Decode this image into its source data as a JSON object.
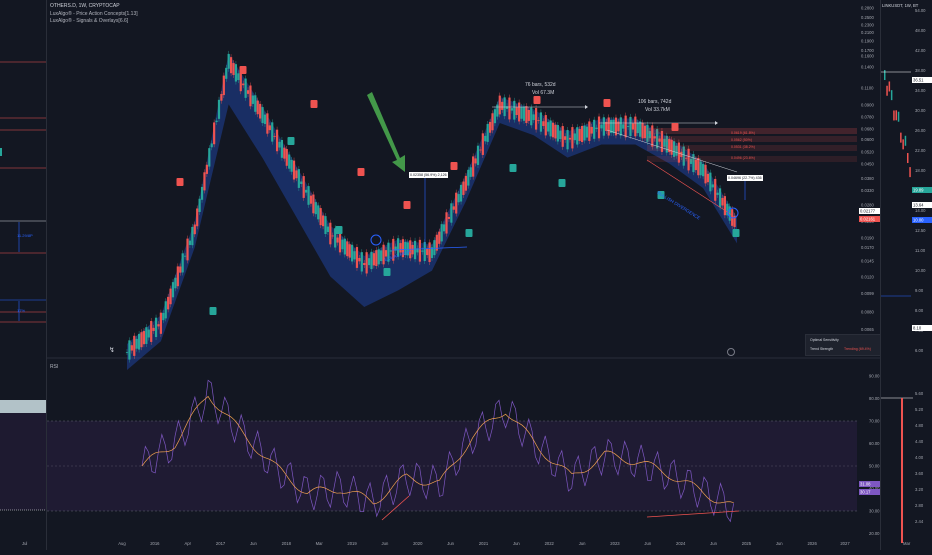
{
  "colors": {
    "bg": "#131722",
    "up": "#26a69a",
    "down": "#ef5350",
    "cloud": "#2962ff",
    "rsi_line": "#7e57c2",
    "rsi_ma": "#f0a050",
    "band": "#ef5350",
    "arrow_green": "#4caf50"
  },
  "left_panel": {
    "labels": [
      "11.29/8P",
      "17%"
    ],
    "time_ticks": [
      "Jul"
    ]
  },
  "main_panel": {
    "header": {
      "title": "OTHERS.D, 1W, CRYPTOCAP",
      "indicator1": "LuxAlgo® - Price Action Concepts[1.13]",
      "indicator2": "LuxAlgo® - Signals & Overlays[6.6]",
      "rsi_label": "RSI"
    },
    "time_ticks": [
      "Aug",
      "2016",
      "Apr",
      "2017",
      "Jun",
      "2018",
      "Mar",
      "2019",
      "Jun",
      "2020",
      "Jun",
      "2021",
      "Jun",
      "2022",
      "Jun",
      "2023",
      "Jun",
      "2024",
      "Jun",
      "2025",
      "Jun",
      "2026",
      "2027"
    ],
    "price_ticks": [
      "0.2800",
      "0.2500",
      "0.2300",
      "0.2100",
      "0.1900",
      "0.1700",
      "0.1600",
      "0.1400",
      "0.1100",
      "0.0900",
      "0.0780",
      "0.0680",
      "0.0600",
      "0.0520",
      "0.0450",
      "0.0380",
      "0.0330",
      "0.0280",
      "0.0230",
      "0.0190",
      "0.0170",
      "0.0145",
      "0.0120",
      "0.0099",
      "0.0080",
      "0.0065",
      "0.0050"
    ],
    "price_tags": [
      "0.02177",
      "0.02161"
    ],
    "rsi_ticks": [
      "90.00",
      "80.00",
      "70.00",
      "60.00",
      "50.00",
      "40.00",
      "30.00",
      "20.00"
    ],
    "rsi_tags": [
      "31.08",
      "30.17"
    ],
    "annotations": {
      "measure1_bars": "76 bars, 532d",
      "measure1_vol": "Vol 67.3M",
      "measure2_bars": "106 bars, 742d",
      "measure2_vol": "Vol 33.7kM",
      "equal_high": "EQUAL HIGH",
      "bullish_divergence": "BULLISH DIVERGENCE",
      "gain_box": "0.02358 (56.9%) 2,126",
      "gain_box2": "0.04696 (22.7%) 436",
      "fib1": "0.0619 (61.8%)",
      "fib2": "0.0562 (50%)",
      "fib3": "0.0531 (38.2%)",
      "fib4": "0.0496 (23.6%)",
      "legend_opt": "Optimal Sensitivity",
      "legend_trend": "Trend Strength",
      "legend_trend_val": "Trending (69.4%)"
    }
  },
  "right_panel": {
    "title": "LINKUSDT, 1W, BT",
    "price_ticks": [
      "54.00",
      "48.00",
      "42.00",
      "38.00",
      "34.00",
      "30.00",
      "26.00",
      "22.00",
      "18.00",
      "16.50",
      "14.00",
      "12.50",
      "11.00",
      "10.00",
      "9.00",
      "8.00",
      "7.00",
      "6.00"
    ],
    "price_tags": [
      "36.51",
      "19.89",
      "13.64",
      "10.00",
      "8.10"
    ],
    "rsi_ticks": [
      "5.60",
      "5.20",
      "4.80",
      "4.40",
      "4.00",
      "3.60",
      "3.20",
      "2.80",
      "2.44"
    ],
    "time_ticks": [
      "Mar"
    ]
  },
  "chart_data": {
    "type": "line",
    "title": "OTHERS.D, 1W, CRYPTOCAP",
    "x": [
      "2015-08",
      "2016",
      "2017",
      "2017-06",
      "2018",
      "2018-06",
      "2019",
      "2019-06",
      "2020",
      "2020-06",
      "2021",
      "2021-06",
      "2022",
      "2022-06",
      "2023",
      "2023-06",
      "2024",
      "2024-06",
      "2025"
    ],
    "series": [
      {
        "name": "OTHERS.D",
        "values": [
          0.005,
          0.007,
          0.021,
          0.15,
          0.08,
          0.04,
          0.02,
          0.014,
          0.017,
          0.016,
          0.036,
          0.09,
          0.078,
          0.06,
          0.07,
          0.07,
          0.056,
          0.042,
          0.022
        ]
      },
      {
        "name": "RSI",
        "values": [
          50,
          60,
          82,
          65,
          50,
          38,
          40,
          34,
          45,
          42,
          63,
          75,
          58,
          45,
          55,
          52,
          46,
          38,
          31
        ]
      }
    ],
    "ylim": [
      0.005,
      0.28
    ],
    "log_scale": true,
    "grid": true
  }
}
